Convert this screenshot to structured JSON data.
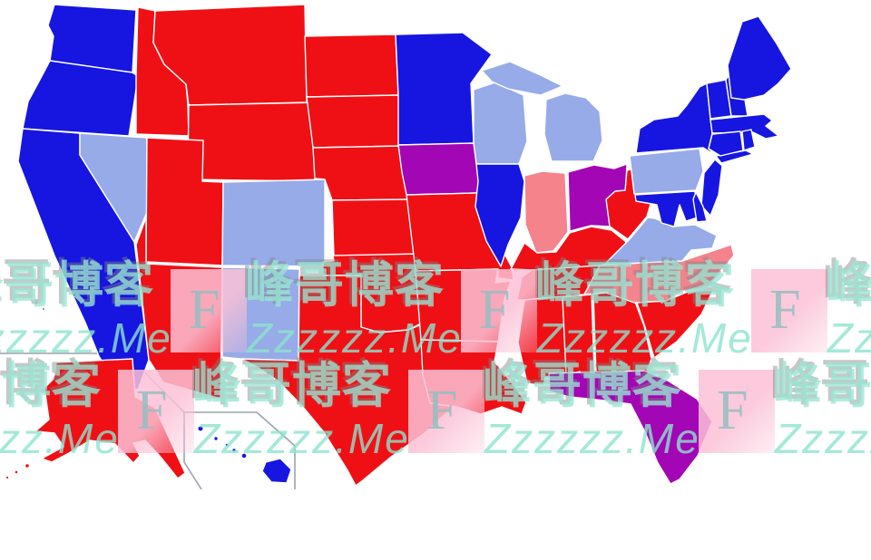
{
  "page": {
    "background": "#ffffff",
    "kind": "us-presidential-election-map-screenshot"
  },
  "map": {
    "border_color": "#ffffff",
    "inset_border_color": "#9aa3ad",
    "party_colors": {
      "solid_dem": "#1616E0",
      "lean_dem": "#96ABE8",
      "tossup": "#A306B4",
      "lean_rep": "#F4838C",
      "solid_rep": "#EF1015"
    },
    "states": [
      {
        "id": "WA",
        "name": "Washington",
        "lean": "solid_dem"
      },
      {
        "id": "OR",
        "name": "Oregon",
        "lean": "solid_dem"
      },
      {
        "id": "CA",
        "name": "California",
        "lean": "solid_dem"
      },
      {
        "id": "NV",
        "name": "Nevada",
        "lean": "lean_dem"
      },
      {
        "id": "ID",
        "name": "Idaho",
        "lean": "solid_rep"
      },
      {
        "id": "MT",
        "name": "Montana",
        "lean": "solid_rep"
      },
      {
        "id": "WY",
        "name": "Wyoming",
        "lean": "solid_rep"
      },
      {
        "id": "UT",
        "name": "Utah",
        "lean": "solid_rep"
      },
      {
        "id": "CO",
        "name": "Colorado",
        "lean": "lean_dem"
      },
      {
        "id": "AZ",
        "name": "Arizona",
        "lean": "solid_rep"
      },
      {
        "id": "NM",
        "name": "New Mexico",
        "lean": "lean_dem"
      },
      {
        "id": "ND",
        "name": "North Dakota",
        "lean": "solid_rep"
      },
      {
        "id": "SD",
        "name": "South Dakota",
        "lean": "solid_rep"
      },
      {
        "id": "NE",
        "name": "Nebraska",
        "lean": "solid_rep"
      },
      {
        "id": "KS",
        "name": "Kansas",
        "lean": "solid_rep"
      },
      {
        "id": "OK",
        "name": "Oklahoma",
        "lean": "solid_rep"
      },
      {
        "id": "TX",
        "name": "Texas",
        "lean": "solid_rep"
      },
      {
        "id": "MN",
        "name": "Minnesota",
        "lean": "solid_dem"
      },
      {
        "id": "IA",
        "name": "Iowa",
        "lean": "tossup"
      },
      {
        "id": "MO",
        "name": "Missouri",
        "lean": "solid_rep"
      },
      {
        "id": "AR",
        "name": "Arkansas",
        "lean": "solid_rep"
      },
      {
        "id": "LA",
        "name": "Louisiana",
        "lean": "solid_rep"
      },
      {
        "id": "WI",
        "name": "Wisconsin",
        "lean": "lean_dem"
      },
      {
        "id": "IL",
        "name": "Illinois",
        "lean": "solid_dem"
      },
      {
        "id": "MI",
        "name": "Michigan",
        "lean": "lean_dem"
      },
      {
        "id": "IN",
        "name": "Indiana",
        "lean": "lean_rep"
      },
      {
        "id": "OH",
        "name": "Ohio",
        "lean": "tossup"
      },
      {
        "id": "KY",
        "name": "Kentucky",
        "lean": "solid_rep"
      },
      {
        "id": "TN",
        "name": "Tennessee",
        "lean": "solid_rep"
      },
      {
        "id": "MS",
        "name": "Mississippi",
        "lean": "solid_rep"
      },
      {
        "id": "AL",
        "name": "Alabama",
        "lean": "solid_rep"
      },
      {
        "id": "GA",
        "name": "Georgia",
        "lean": "solid_rep"
      },
      {
        "id": "FL",
        "name": "Florida",
        "lean": "tossup"
      },
      {
        "id": "SC",
        "name": "South Carolina",
        "lean": "solid_rep"
      },
      {
        "id": "NC",
        "name": "North Carolina",
        "lean": "lean_rep"
      },
      {
        "id": "VA",
        "name": "Virginia",
        "lean": "lean_dem"
      },
      {
        "id": "WV",
        "name": "West Virginia",
        "lean": "solid_rep"
      },
      {
        "id": "PA",
        "name": "Pennsylvania",
        "lean": "lean_dem"
      },
      {
        "id": "NY",
        "name": "New York",
        "lean": "solid_dem"
      },
      {
        "id": "NJ",
        "name": "New Jersey",
        "lean": "solid_dem"
      },
      {
        "id": "DE",
        "name": "Delaware",
        "lean": "solid_dem"
      },
      {
        "id": "MD",
        "name": "Maryland",
        "lean": "solid_dem"
      },
      {
        "id": "VT",
        "name": "Vermont",
        "lean": "solid_dem"
      },
      {
        "id": "NH",
        "name": "New Hampshire",
        "lean": "solid_dem"
      },
      {
        "id": "ME",
        "name": "Maine",
        "lean": "solid_dem"
      },
      {
        "id": "MA",
        "name": "Massachusetts",
        "lean": "solid_dem"
      },
      {
        "id": "CT",
        "name": "Connecticut",
        "lean": "solid_dem"
      },
      {
        "id": "RI",
        "name": "Rhode Island",
        "lean": "solid_dem"
      },
      {
        "id": "AK",
        "name": "Alaska",
        "lean": "solid_rep"
      },
      {
        "id": "HI",
        "name": "Hawaii",
        "lean": "solid_dem"
      }
    ]
  },
  "watermark": {
    "brand_cn": "峰哥博客",
    "brand_site": "Zzzzzz.Me",
    "badge_letter": "F",
    "badge_bg_color": "#FBC1D6",
    "badge_letter_color": "#94BEC1",
    "text_color": "#98E5D4"
  }
}
